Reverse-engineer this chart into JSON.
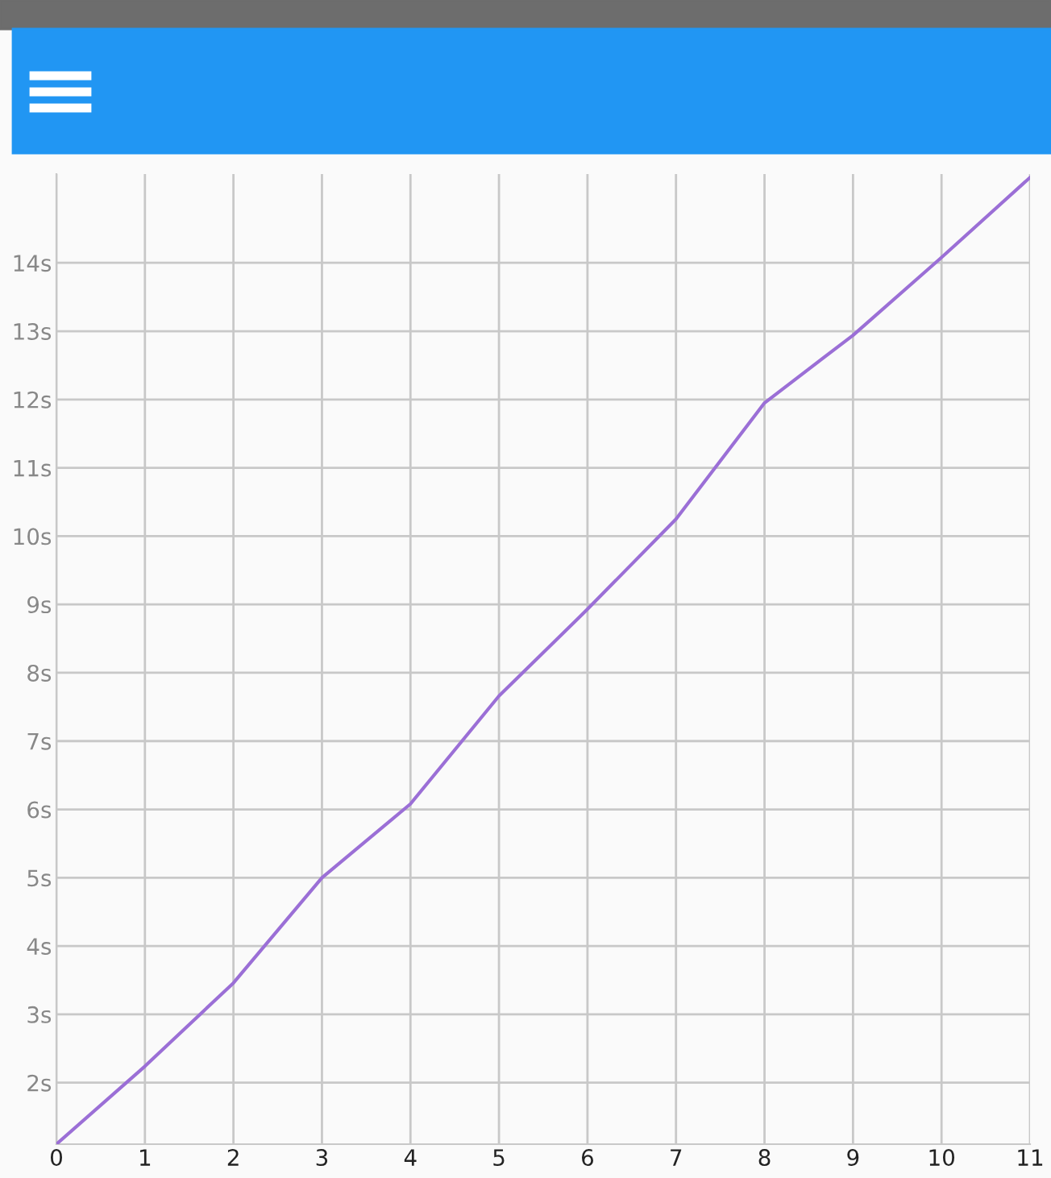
{
  "chart_data": {
    "type": "line",
    "x": [
      0,
      1,
      2,
      3,
      4,
      5,
      6,
      7,
      8,
      9,
      10,
      11
    ],
    "series": [
      {
        "color": "#9b6fd6",
        "values": [
          1.1,
          2.24,
          3.46,
          5.0,
          6.08,
          7.66,
          8.93,
          10.25,
          11.95,
          12.94,
          14.08,
          15.25
        ]
      }
    ],
    "xlim": [
      0,
      11
    ],
    "xticks": [
      0,
      1,
      2,
      3,
      4,
      5,
      6,
      7,
      8,
      9,
      10,
      11
    ],
    "ylim": [
      1.1,
      15.3
    ],
    "yticks": [
      {
        "value": 2,
        "label": "2s"
      },
      {
        "value": 3,
        "label": "3s"
      },
      {
        "value": 4,
        "label": "4s"
      },
      {
        "value": 5,
        "label": "5s"
      },
      {
        "value": 6,
        "label": "6s"
      },
      {
        "value": 7,
        "label": "7s"
      },
      {
        "value": 8,
        "label": "8s"
      },
      {
        "value": 9,
        "label": "9s"
      },
      {
        "value": 10,
        "label": "10s"
      },
      {
        "value": 11,
        "label": "11s"
      },
      {
        "value": 12,
        "label": "12s"
      },
      {
        "value": 13,
        "label": "13s"
      },
      {
        "value": 14,
        "label": "14s"
      }
    ],
    "grid": true,
    "marker": "none",
    "line_style": "solid"
  }
}
